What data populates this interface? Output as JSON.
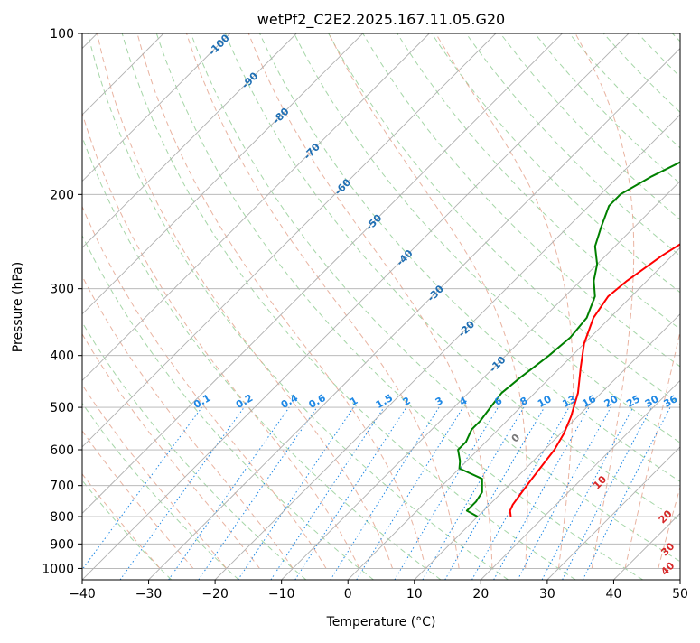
{
  "chart_data": {
    "type": "line",
    "subtype": "skew-t log-p sounding",
    "title": "wetPf2_C2E2.2025.167.11.05.G20",
    "xlabel": "Temperature (°C)",
    "ylabel": "Pressure (hPa)",
    "xlim": [
      -40,
      50
    ],
    "ylim": [
      1050,
      100
    ],
    "y_scale": "log",
    "grid": true,
    "x_ticks": [
      -40,
      -30,
      -20,
      -10,
      0,
      10,
      20,
      30,
      40,
      50
    ],
    "y_ticks": [
      100,
      200,
      300,
      400,
      500,
      600,
      700,
      800,
      900,
      1000
    ],
    "series": [
      {
        "role": "temperature",
        "color": "#ff0000",
        "points": [
          [
            15,
            800
          ],
          [
            14,
            780
          ],
          [
            13.5,
            760
          ],
          [
            13,
            720
          ],
          [
            12.5,
            680
          ],
          [
            12,
            640
          ],
          [
            11.5,
            600
          ],
          [
            10.5,
            560
          ],
          [
            9,
            520
          ],
          [
            6.5,
            470
          ],
          [
            3,
            420
          ],
          [
            0,
            380
          ],
          [
            -2.5,
            340
          ],
          [
            -3.5,
            310
          ],
          [
            -3,
            290
          ],
          [
            -1.5,
            260
          ],
          [
            1,
            230
          ],
          [
            5,
            200
          ],
          [
            8,
            180
          ],
          [
            11.5,
            160
          ],
          [
            12.5,
            150
          ],
          [
            13,
            140
          ],
          [
            14.5,
            130
          ],
          [
            17,
            122
          ],
          [
            20,
            117
          ],
          [
            21,
            113
          ],
          [
            21.5,
            108
          ],
          [
            23,
            100
          ]
        ]
      },
      {
        "role": "dewpoint",
        "color": "#008000",
        "points": [
          [
            10,
            800
          ],
          [
            7.5,
            780
          ],
          [
            7.5,
            750
          ],
          [
            7,
            720
          ],
          [
            5,
            680
          ],
          [
            0,
            650
          ],
          [
            -1,
            630
          ],
          [
            -3,
            600
          ],
          [
            -3,
            580
          ],
          [
            -4,
            550
          ],
          [
            -4,
            530
          ],
          [
            -4.5,
            500
          ],
          [
            -5,
            470
          ],
          [
            -4.5,
            440
          ],
          [
            -4,
            420
          ],
          [
            -3.5,
            400
          ],
          [
            -3,
            370
          ],
          [
            -3.5,
            340
          ],
          [
            -5.5,
            310
          ],
          [
            -8,
            290
          ],
          [
            -10,
            270
          ],
          [
            -13,
            250
          ],
          [
            -15,
            230
          ],
          [
            -17,
            210
          ],
          [
            -17,
            200
          ],
          [
            -15,
            185
          ],
          [
            -12,
            170
          ],
          [
            -13,
            160
          ],
          [
            -12,
            150
          ],
          [
            -8,
            140
          ],
          [
            -5,
            130
          ],
          [
            -4.5,
            120
          ],
          [
            -3,
            112
          ],
          [
            -1,
            106
          ],
          [
            1,
            100
          ]
        ]
      }
    ],
    "isotherm_labels": [
      "-100",
      "-90",
      "-80",
      "-70",
      "-60",
      "-50",
      "-40",
      "-30",
      "-20",
      "-10"
    ],
    "mixing_ratio_labels": [
      "0.1",
      "0.2",
      "0.4",
      "0.6",
      "1",
      "1.5",
      "2",
      "3",
      "4",
      "6",
      "8",
      "10",
      "13",
      "16",
      "20",
      "25",
      "30",
      "36"
    ],
    "moist_adiabat_labels": [
      "0",
      "10",
      "20",
      "30",
      "40"
    ],
    "colors": {
      "isotherm": "#b0b0b0",
      "isobar": "#b0b0b0",
      "isotherm_label": "#1f6fb4",
      "mixing_ratio": "#1e88e5",
      "moist_adiabat": "#e3a08a",
      "moist_adiabat_label": "#d62728",
      "dry_adiabat": "#a5d6a7",
      "saturation_adiabat": "#d7c4a8"
    }
  }
}
